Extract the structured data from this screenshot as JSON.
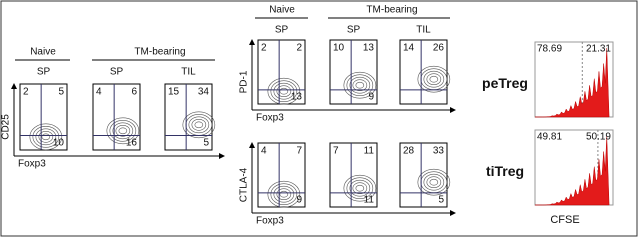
{
  "panel_a": {
    "header": {
      "left": "Naive",
      "right": "TM-bearing"
    },
    "subheaders": [
      "SP",
      "SP",
      "TIL"
    ],
    "y_label": "CD25",
    "x_label": "Foxp3",
    "plots": [
      {
        "upper_left": 2,
        "upper_right": 5,
        "lower_right": 10
      },
      {
        "upper_left": 4,
        "upper_right": 6,
        "lower_right": 16
      },
      {
        "upper_left": 15,
        "upper_right": 34,
        "lower_right": 5
      }
    ]
  },
  "panel_b": {
    "header": {
      "left": "Naive",
      "right": "TM-bearing"
    },
    "subheaders": [
      "SP",
      "SP",
      "TIL"
    ],
    "rows": [
      {
        "y_label": "PD-1",
        "x_label": "Foxp3",
        "plots": [
          {
            "upper_left": 2,
            "upper_right": 2,
            "lower_right": 13
          },
          {
            "upper_left": 10,
            "upper_right": 13,
            "lower_right": 9
          },
          {
            "upper_left": 14,
            "upper_right": 26
          }
        ]
      },
      {
        "y_label": "CTLA-4",
        "x_label": "Foxp3",
        "plots": [
          {
            "upper_left": 4,
            "upper_right": 7,
            "lower_right": 9
          },
          {
            "upper_left": 7,
            "upper_right": 11,
            "lower_right": 11
          },
          {
            "upper_left": 28,
            "upper_right": 33,
            "lower_right": 5
          }
        ]
      }
    ]
  },
  "panel_c": {
    "rows": [
      {
        "label": "peTreg",
        "left": 78.69,
        "right": 21.31
      },
      {
        "label": "tiTreg",
        "left": 49.81,
        "right": 50.19
      }
    ],
    "x_label": "CFSE"
  }
}
